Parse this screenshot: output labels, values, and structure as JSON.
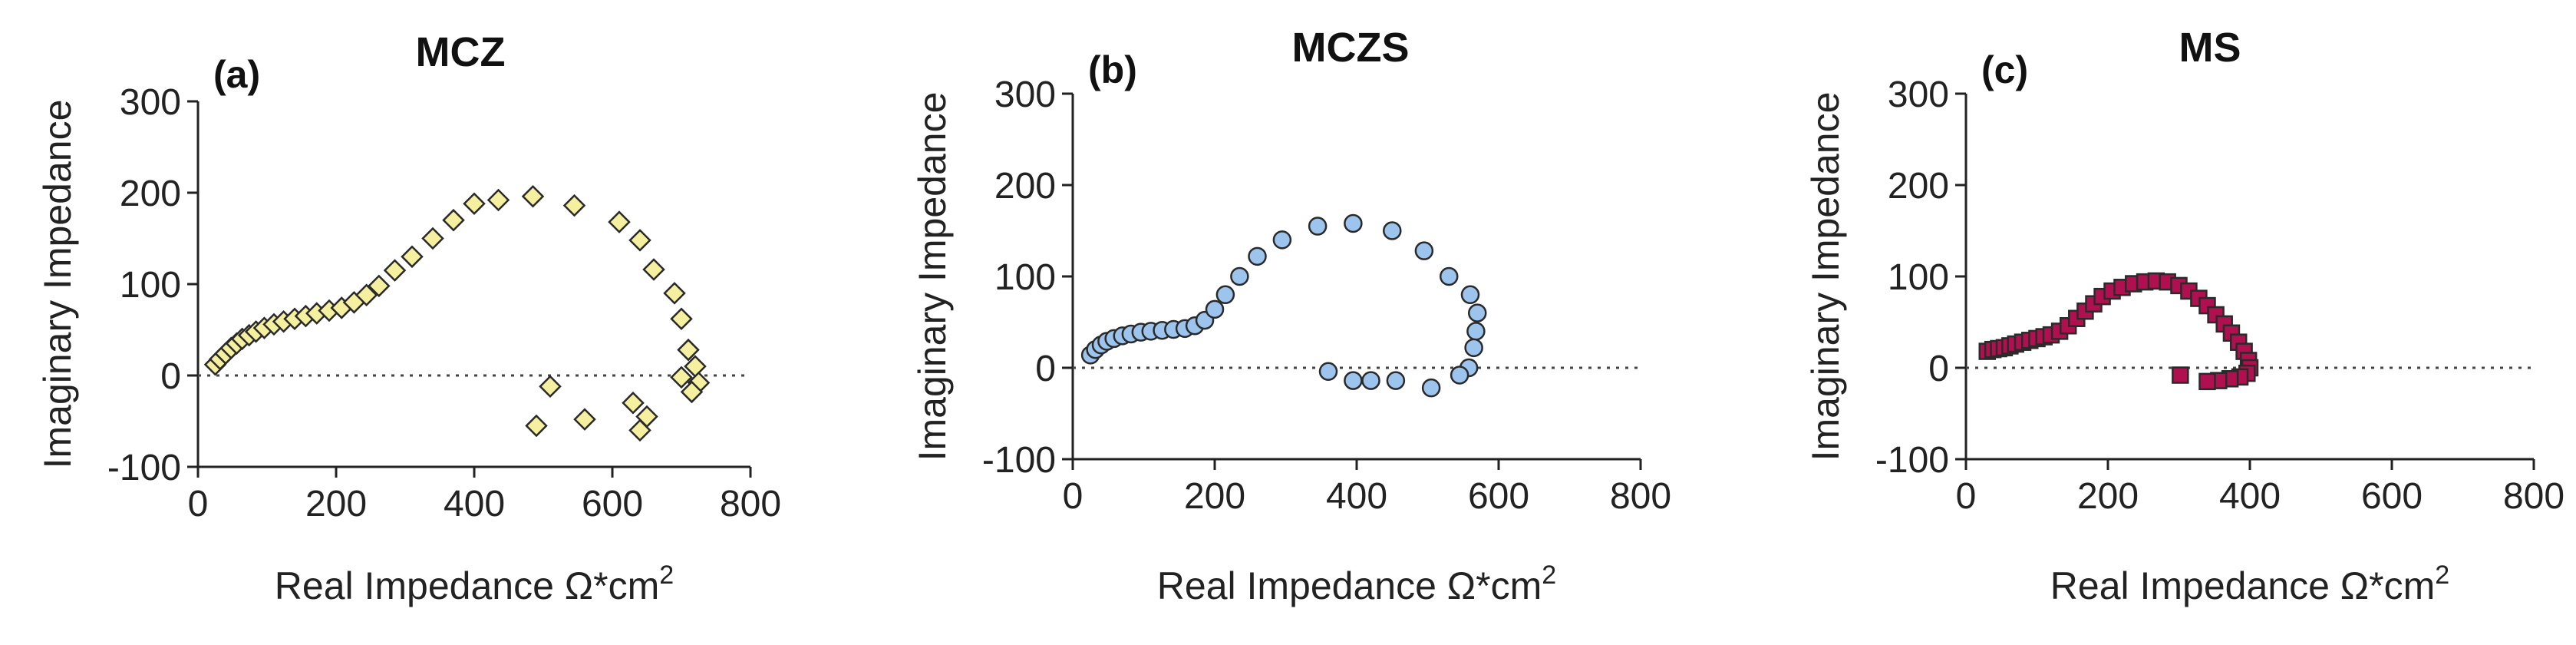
{
  "chart_data": [
    {
      "type": "scatter",
      "panel_label": "(a)",
      "title": "MCZ",
      "xlabel": "Real Impedance Ω*cm",
      "xlabel_sup": "2",
      "ylabel": "Imaginary Impedance",
      "xlim": [
        0,
        800
      ],
      "ylim": [
        -100,
        300
      ],
      "xticks": [
        "0",
        "200",
        "400",
        "600",
        "800"
      ],
      "yticks": [
        "-100",
        "0",
        "100",
        "200",
        "300"
      ],
      "marker": "diamond",
      "color": "#f5f0a0",
      "points": [
        [
          25,
          12
        ],
        [
          32,
          18
        ],
        [
          40,
          24
        ],
        [
          48,
          30
        ],
        [
          56,
          35
        ],
        [
          64,
          40
        ],
        [
          74,
          44
        ],
        [
          84,
          48
        ],
        [
          96,
          52
        ],
        [
          110,
          56
        ],
        [
          124,
          59
        ],
        [
          140,
          62
        ],
        [
          156,
          65
        ],
        [
          172,
          68
        ],
        [
          190,
          71
        ],
        [
          208,
          74
        ],
        [
          226,
          80
        ],
        [
          244,
          88
        ],
        [
          262,
          98
        ],
        [
          285,
          115
        ],
        [
          310,
          130
        ],
        [
          340,
          150
        ],
        [
          370,
          170
        ],
        [
          400,
          188
        ],
        [
          435,
          192
        ],
        [
          485,
          196
        ],
        [
          545,
          186
        ],
        [
          610,
          168
        ],
        [
          640,
          148
        ],
        [
          660,
          116
        ],
        [
          690,
          90
        ],
        [
          700,
          62
        ],
        [
          710,
          28
        ],
        [
          720,
          10
        ],
        [
          725,
          -8
        ],
        [
          715,
          -18
        ],
        [
          700,
          -2
        ],
        [
          630,
          -30
        ],
        [
          650,
          -45
        ],
        [
          640,
          -60
        ],
        [
          560,
          -48
        ],
        [
          490,
          -55
        ],
        [
          510,
          -12
        ]
      ]
    },
    {
      "type": "scatter",
      "panel_label": "(b)",
      "title": "MCZS",
      "xlabel": "Real Impedance Ω*cm",
      "xlabel_sup": "2",
      "ylabel": "Imaginary Impedance",
      "xlim": [
        0,
        800
      ],
      "ylim": [
        -100,
        300
      ],
      "xticks": [
        "0",
        "200",
        "400",
        "600",
        "800"
      ],
      "yticks": [
        "-100",
        "0",
        "100",
        "200",
        "300"
      ],
      "marker": "circle",
      "color": "#9cc4ec",
      "points": [
        [
          25,
          14
        ],
        [
          32,
          20
        ],
        [
          40,
          25
        ],
        [
          48,
          29
        ],
        [
          58,
          32
        ],
        [
          70,
          35
        ],
        [
          82,
          37
        ],
        [
          96,
          39
        ],
        [
          110,
          40
        ],
        [
          126,
          41
        ],
        [
          142,
          42
        ],
        [
          158,
          43
        ],
        [
          172,
          46
        ],
        [
          186,
          52
        ],
        [
          200,
          64
        ],
        [
          215,
          80
        ],
        [
          235,
          100
        ],
        [
          260,
          122
        ],
        [
          295,
          140
        ],
        [
          345,
          155
        ],
        [
          395,
          158
        ],
        [
          450,
          150
        ],
        [
          495,
          128
        ],
        [
          530,
          100
        ],
        [
          560,
          80
        ],
        [
          570,
          60
        ],
        [
          568,
          40
        ],
        [
          565,
          22
        ],
        [
          558,
          0
        ],
        [
          545,
          -8
        ],
        [
          505,
          -22
        ],
        [
          455,
          -14
        ],
        [
          420,
          -14
        ],
        [
          395,
          -14
        ],
        [
          360,
          -4
        ]
      ]
    },
    {
      "type": "scatter",
      "panel_label": "(c)",
      "title": "MS",
      "xlabel": "Real Impedance Ω*cm",
      "xlabel_sup": "2",
      "ylabel": "Imaginary Impedance",
      "xlim": [
        0,
        800
      ],
      "ylim": [
        -100,
        300
      ],
      "xticks": [
        "0",
        "200",
        "400",
        "600",
        "800"
      ],
      "yticks": [
        "-100",
        "0",
        "100",
        "200",
        "300"
      ],
      "marker": "square",
      "color": "#b01050",
      "points": [
        [
          30,
          18
        ],
        [
          38,
          20
        ],
        [
          46,
          21
        ],
        [
          54,
          22
        ],
        [
          62,
          24
        ],
        [
          70,
          26
        ],
        [
          80,
          28
        ],
        [
          90,
          30
        ],
        [
          100,
          32
        ],
        [
          110,
          34
        ],
        [
          120,
          36
        ],
        [
          132,
          40
        ],
        [
          144,
          46
        ],
        [
          156,
          54
        ],
        [
          168,
          62
        ],
        [
          180,
          70
        ],
        [
          192,
          78
        ],
        [
          206,
          84
        ],
        [
          220,
          88
        ],
        [
          236,
          92
        ],
        [
          252,
          94
        ],
        [
          268,
          95
        ],
        [
          284,
          94
        ],
        [
          300,
          90
        ],
        [
          314,
          84
        ],
        [
          328,
          76
        ],
        [
          340,
          68
        ],
        [
          352,
          58
        ],
        [
          364,
          48
        ],
        [
          374,
          38
        ],
        [
          384,
          28
        ],
        [
          392,
          18
        ],
        [
          398,
          8
        ],
        [
          400,
          0
        ],
        [
          396,
          -6
        ],
        [
          386,
          -10
        ],
        [
          372,
          -12
        ],
        [
          356,
          -14
        ],
        [
          340,
          -15
        ],
        [
          302,
          -8
        ]
      ]
    }
  ]
}
